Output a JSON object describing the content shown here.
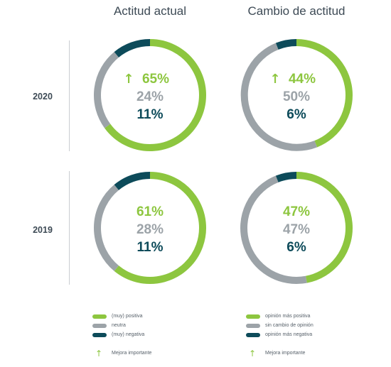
{
  "colors": {
    "positive": "#8dc63f",
    "neutral": "#9ca3a8",
    "negative": "#0d4b5a",
    "track": "#e6e8ea",
    "label_text": "#3d4a55"
  },
  "chart_data": [
    {
      "type": "pie",
      "title": "Actitud actual",
      "row": "2020",
      "series": [
        {
          "name": "(muy) positiva",
          "value": 65
        },
        {
          "name": "neutra",
          "value": 24
        },
        {
          "name": "(muy) negativa",
          "value": 11
        }
      ],
      "labels": [
        "65%",
        "24%",
        "11%"
      ],
      "important_improvement": true
    },
    {
      "type": "pie",
      "title": "Cambio de actitud",
      "row": "2020",
      "series": [
        {
          "name": "opinión más positiva",
          "value": 44
        },
        {
          "name": "sin cambio de opinión",
          "value": 50
        },
        {
          "name": "opinión más negativa",
          "value": 6
        }
      ],
      "labels": [
        "44%",
        "50%",
        "6%"
      ],
      "important_improvement": true
    },
    {
      "type": "pie",
      "title": "Actitud actual",
      "row": "2019",
      "series": [
        {
          "name": "(muy) positiva",
          "value": 61
        },
        {
          "name": "neutra",
          "value": 28
        },
        {
          "name": "(muy) negativa",
          "value": 11
        }
      ],
      "labels": [
        "61%",
        "28%",
        "11%"
      ],
      "important_improvement": false
    },
    {
      "type": "pie",
      "title": "Cambio de actitud",
      "row": "2019",
      "series": [
        {
          "name": "opinión más positiva",
          "value": 47
        },
        {
          "name": "sin cambio de opinión",
          "value": 47
        },
        {
          "name": "opinión más negativa",
          "value": 6
        }
      ],
      "labels": [
        "47%",
        "47%",
        "6%"
      ],
      "important_improvement": false
    }
  ],
  "columns": [
    "Actitud actual",
    "Cambio de actitud"
  ],
  "rows": [
    "2020",
    "2019"
  ],
  "legend_left": {
    "items": [
      "(muy) positiva",
      "neutra",
      "(muy) negativa"
    ],
    "arrow_label": "Mejora importante"
  },
  "legend_right": {
    "items": [
      "opinión más positiva",
      "sin cambio de opinión",
      "opinión más negativa"
    ],
    "arrow_label": "Mejora importante"
  }
}
